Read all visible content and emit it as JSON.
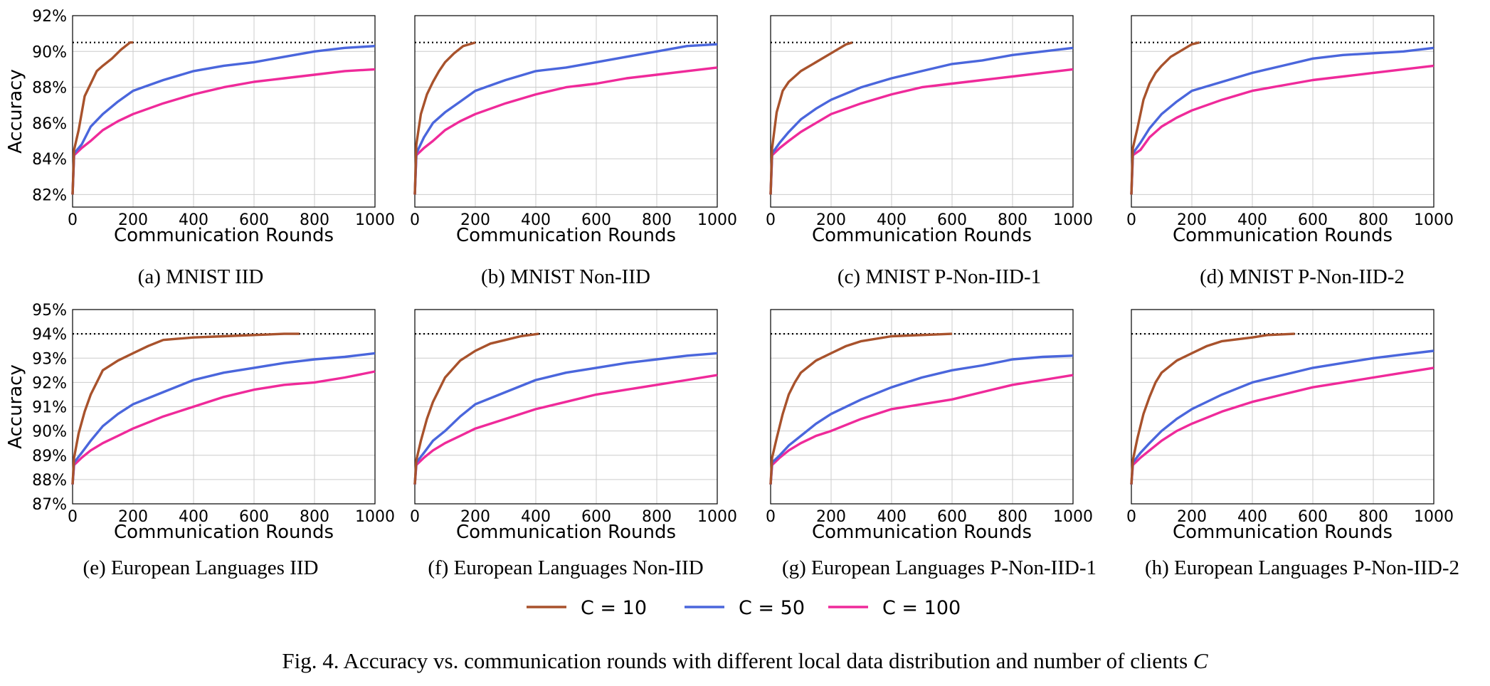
{
  "colors": {
    "C10": "#a8522c",
    "C50": "#4a66dc",
    "C100": "#ef2a9a",
    "target": "#000000"
  },
  "legend": [
    {
      "label": "C = 10",
      "color": "#a8522c"
    },
    {
      "label": "C = 50",
      "color": "#4a66dc"
    },
    {
      "label": "C = 100",
      "color": "#ef2a9a"
    }
  ],
  "figure_caption": {
    "prefix": "Fig. 4.  Accuracy vs. communication rounds with different local data distribution and number of clients ",
    "var": "C"
  },
  "chart_data": [
    {
      "type": "line",
      "caption": "(a) MNIST IID",
      "xlabel": "Communication Rounds",
      "ylabel": "Accuracy",
      "xlim": [
        0,
        1000
      ],
      "ylim": [
        81.3,
        92
      ],
      "yticks": [
        "82%",
        "84%",
        "86%",
        "88%",
        "90%",
        "92%"
      ],
      "xticks": [
        "0",
        "200",
        "400",
        "600",
        "800",
        "1000"
      ],
      "target": 90.5,
      "series": [
        {
          "name": "C = 10",
          "x": [
            0,
            5,
            20,
            40,
            60,
            80,
            100,
            130,
            160,
            190,
            200
          ],
          "y": [
            82,
            84.5,
            85.6,
            87.5,
            88.2,
            88.9,
            89.2,
            89.6,
            90.1,
            90.5,
            90.5
          ]
        },
        {
          "name": "C = 50",
          "x": [
            0,
            5,
            30,
            60,
            100,
            150,
            200,
            300,
            400,
            500,
            600,
            700,
            800,
            900,
            1000
          ],
          "y": [
            82,
            84.3,
            84.8,
            85.8,
            86.5,
            87.2,
            87.8,
            88.4,
            88.9,
            89.2,
            89.4,
            89.7,
            90,
            90.2,
            90.3
          ]
        },
        {
          "name": "C = 100",
          "x": [
            0,
            5,
            30,
            60,
            100,
            150,
            200,
            300,
            400,
            500,
            600,
            700,
            800,
            900,
            1000
          ],
          "y": [
            82,
            84.2,
            84.6,
            85.0,
            85.6,
            86.1,
            86.5,
            87.1,
            87.6,
            88.0,
            88.3,
            88.5,
            88.7,
            88.9,
            89.0
          ]
        }
      ]
    },
    {
      "type": "line",
      "caption": "(b) MNIST Non-IID",
      "xlabel": "Communication Rounds",
      "ylabel": "",
      "xlim": [
        0,
        1000
      ],
      "ylim": [
        81.3,
        92
      ],
      "yticks": [],
      "xticks": [
        "0",
        "200",
        "400",
        "600",
        "800",
        "1000"
      ],
      "target": 90.5,
      "series": [
        {
          "name": "C = 10",
          "x": [
            0,
            5,
            20,
            40,
            60,
            80,
            100,
            130,
            160,
            200
          ],
          "y": [
            82,
            84.8,
            86.5,
            87.6,
            88.3,
            88.9,
            89.4,
            89.9,
            90.3,
            90.5
          ]
        },
        {
          "name": "C = 50",
          "x": [
            0,
            5,
            30,
            60,
            100,
            150,
            200,
            300,
            400,
            500,
            600,
            700,
            800,
            900,
            1000
          ],
          "y": [
            82,
            84.3,
            85.2,
            86.0,
            86.6,
            87.2,
            87.8,
            88.4,
            88.9,
            89.1,
            89.4,
            89.7,
            90.0,
            90.3,
            90.4
          ]
        },
        {
          "name": "C = 100",
          "x": [
            0,
            5,
            30,
            60,
            100,
            150,
            200,
            300,
            400,
            500,
            600,
            700,
            800,
            900,
            1000
          ],
          "y": [
            82,
            84.2,
            84.6,
            85.0,
            85.6,
            86.1,
            86.5,
            87.1,
            87.6,
            88.0,
            88.2,
            88.5,
            88.7,
            88.9,
            89.1
          ]
        }
      ]
    },
    {
      "type": "line",
      "caption": "(c) MNIST P-Non-IID-1",
      "xlabel": "Communication Rounds",
      "ylabel": "",
      "xlim": [
        0,
        1000
      ],
      "ylim": [
        81.3,
        92
      ],
      "yticks": [],
      "xticks": [
        "0",
        "200",
        "400",
        "600",
        "800",
        "1000"
      ],
      "target": 90.5,
      "series": [
        {
          "name": "C = 10",
          "x": [
            0,
            5,
            20,
            40,
            60,
            80,
            100,
            150,
            200,
            250,
            270
          ],
          "y": [
            82,
            84.6,
            86.6,
            87.8,
            88.3,
            88.6,
            88.9,
            89.4,
            89.9,
            90.4,
            90.5
          ]
        },
        {
          "name": "C = 50",
          "x": [
            0,
            5,
            30,
            60,
            100,
            150,
            200,
            300,
            400,
            500,
            600,
            700,
            800,
            900,
            1000
          ],
          "y": [
            82,
            84.3,
            84.9,
            85.5,
            86.2,
            86.8,
            87.3,
            88.0,
            88.5,
            88.9,
            89.3,
            89.5,
            89.8,
            90.0,
            90.2
          ]
        },
        {
          "name": "C = 100",
          "x": [
            0,
            5,
            30,
            60,
            100,
            150,
            200,
            300,
            400,
            500,
            600,
            700,
            800,
            900,
            1000
          ],
          "y": [
            82,
            84.2,
            84.6,
            85.0,
            85.5,
            86.0,
            86.5,
            87.1,
            87.6,
            88.0,
            88.2,
            88.4,
            88.6,
            88.8,
            89.0
          ]
        }
      ]
    },
    {
      "type": "line",
      "caption": "(d) MNIST P-Non-IID-2",
      "xlabel": "Communication Rounds",
      "ylabel": "",
      "xlim": [
        0,
        1000
      ],
      "ylim": [
        81.3,
        92
      ],
      "yticks": [],
      "xticks": [
        "0",
        "200",
        "400",
        "600",
        "800",
        "1000"
      ],
      "target": 90.5,
      "series": [
        {
          "name": "C = 10",
          "x": [
            0,
            5,
            20,
            40,
            60,
            80,
            100,
            130,
            160,
            200,
            225
          ],
          "y": [
            82,
            84.6,
            85.7,
            87.3,
            88.2,
            88.8,
            89.2,
            89.7,
            90.0,
            90.4,
            90.5
          ]
        },
        {
          "name": "C = 50",
          "x": [
            0,
            5,
            30,
            60,
            100,
            150,
            200,
            300,
            400,
            500,
            600,
            700,
            800,
            900,
            1000
          ],
          "y": [
            82,
            84.3,
            84.9,
            85.7,
            86.5,
            87.2,
            87.8,
            88.3,
            88.8,
            89.2,
            89.6,
            89.8,
            89.9,
            90.0,
            90.2
          ]
        },
        {
          "name": "C = 100",
          "x": [
            0,
            5,
            30,
            60,
            100,
            150,
            200,
            300,
            400,
            500,
            600,
            700,
            800,
            900,
            1000
          ],
          "y": [
            82,
            84.2,
            84.5,
            85.2,
            85.8,
            86.3,
            86.7,
            87.3,
            87.8,
            88.1,
            88.4,
            88.6,
            88.8,
            89.0,
            89.2
          ]
        }
      ]
    },
    {
      "type": "line",
      "caption": "(e) European Languages IID",
      "xlabel": "Communication Rounds",
      "ylabel": "Accuracy",
      "xlim": [
        0,
        1000
      ],
      "ylim": [
        87,
        95
      ],
      "yticks": [
        "87%",
        "88%",
        "89%",
        "90%",
        "91%",
        "92%",
        "93%",
        "94%",
        "95%"
      ],
      "xticks": [
        "0",
        "200",
        "400",
        "600",
        "800",
        "1000"
      ],
      "target": 94.0,
      "series": [
        {
          "name": "C = 10",
          "x": [
            0,
            5,
            20,
            40,
            60,
            80,
            100,
            150,
            200,
            250,
            300,
            400,
            500,
            600,
            700,
            750
          ],
          "y": [
            87.8,
            88.9,
            89.9,
            90.8,
            91.5,
            92.0,
            92.5,
            92.9,
            93.2,
            93.5,
            93.75,
            93.85,
            93.9,
            93.95,
            94.0,
            94.0
          ]
        },
        {
          "name": "C = 50",
          "x": [
            0,
            5,
            30,
            60,
            100,
            150,
            200,
            300,
            400,
            500,
            600,
            700,
            800,
            900,
            1000
          ],
          "y": [
            87.8,
            88.7,
            89.1,
            89.6,
            90.2,
            90.7,
            91.1,
            91.6,
            92.1,
            92.4,
            92.6,
            92.8,
            92.95,
            93.05,
            93.2
          ]
        },
        {
          "name": "C = 100",
          "x": [
            0,
            5,
            30,
            60,
            100,
            150,
            200,
            300,
            400,
            500,
            600,
            700,
            800,
            900,
            1000
          ],
          "y": [
            87.8,
            88.6,
            88.9,
            89.2,
            89.5,
            89.8,
            90.1,
            90.6,
            91.0,
            91.4,
            91.7,
            91.9,
            92.0,
            92.2,
            92.45
          ]
        }
      ]
    },
    {
      "type": "line",
      "caption": "(f) European Languages Non-IID",
      "xlabel": "Communication Rounds",
      "ylabel": "",
      "xlim": [
        0,
        1000
      ],
      "ylim": [
        87,
        95
      ],
      "yticks": [],
      "xticks": [
        "0",
        "200",
        "400",
        "600",
        "800",
        "1000"
      ],
      "target": 94.0,
      "series": [
        {
          "name": "C = 10",
          "x": [
            0,
            5,
            20,
            40,
            60,
            80,
            100,
            150,
            200,
            250,
            300,
            350,
            410
          ],
          "y": [
            87.8,
            88.8,
            89.6,
            90.5,
            91.2,
            91.7,
            92.2,
            92.9,
            93.3,
            93.6,
            93.75,
            93.9,
            94.0
          ]
        },
        {
          "name": "C = 50",
          "x": [
            0,
            5,
            30,
            60,
            100,
            150,
            200,
            300,
            400,
            500,
            600,
            700,
            800,
            900,
            1000
          ],
          "y": [
            87.8,
            88.7,
            89.1,
            89.6,
            90.0,
            90.6,
            91.1,
            91.6,
            92.1,
            92.4,
            92.6,
            92.8,
            92.95,
            93.1,
            93.2
          ]
        },
        {
          "name": "C = 100",
          "x": [
            0,
            5,
            30,
            60,
            100,
            150,
            200,
            300,
            400,
            500,
            600,
            700,
            800,
            900,
            1000
          ],
          "y": [
            87.8,
            88.6,
            88.9,
            89.2,
            89.5,
            89.8,
            90.1,
            90.5,
            90.9,
            91.2,
            91.5,
            91.7,
            91.9,
            92.1,
            92.3
          ]
        }
      ]
    },
    {
      "type": "line",
      "caption": "(g) European Languages P-Non-IID-1",
      "xlabel": "Communication Rounds",
      "ylabel": "",
      "xlim": [
        0,
        1000
      ],
      "ylim": [
        87,
        95
      ],
      "yticks": [],
      "xticks": [
        "0",
        "200",
        "400",
        "600",
        "800",
        "1000"
      ],
      "target": 94.0,
      "series": [
        {
          "name": "C = 10",
          "x": [
            0,
            5,
            20,
            40,
            60,
            80,
            100,
            150,
            200,
            250,
            300,
            400,
            500,
            600
          ],
          "y": [
            87.8,
            88.9,
            89.7,
            90.7,
            91.5,
            92.0,
            92.4,
            92.9,
            93.2,
            93.5,
            93.7,
            93.9,
            93.95,
            94.0
          ]
        },
        {
          "name": "C = 50",
          "x": [
            0,
            5,
            30,
            60,
            100,
            150,
            200,
            300,
            400,
            500,
            600,
            700,
            800,
            900,
            1000
          ],
          "y": [
            87.8,
            88.7,
            89.0,
            89.4,
            89.8,
            90.3,
            90.7,
            91.3,
            91.8,
            92.2,
            92.5,
            92.7,
            92.95,
            93.05,
            93.1
          ]
        },
        {
          "name": "C = 100",
          "x": [
            0,
            5,
            30,
            60,
            100,
            150,
            200,
            300,
            400,
            500,
            600,
            700,
            800,
            900,
            1000
          ],
          "y": [
            87.8,
            88.6,
            88.9,
            89.2,
            89.5,
            89.8,
            90.0,
            90.5,
            90.9,
            91.1,
            91.3,
            91.6,
            91.9,
            92.1,
            92.3
          ]
        }
      ]
    },
    {
      "type": "line",
      "caption": "(h) European Languages P-Non-IID-2",
      "xlabel": "Communication Rounds",
      "ylabel": "",
      "xlim": [
        0,
        1000
      ],
      "ylim": [
        87,
        95
      ],
      "yticks": [],
      "xticks": [
        "0",
        "200",
        "400",
        "600",
        "800",
        "1000"
      ],
      "target": 94.0,
      "series": [
        {
          "name": "C = 10",
          "x": [
            0,
            5,
            20,
            40,
            60,
            80,
            100,
            150,
            200,
            250,
            300,
            400,
            450,
            540
          ],
          "y": [
            87.8,
            88.8,
            89.7,
            90.7,
            91.4,
            92.0,
            92.4,
            92.9,
            93.2,
            93.5,
            93.7,
            93.85,
            93.95,
            94.0
          ]
        },
        {
          "name": "C = 50",
          "x": [
            0,
            5,
            30,
            60,
            100,
            150,
            200,
            300,
            400,
            500,
            600,
            700,
            800,
            900,
            1000
          ],
          "y": [
            87.8,
            88.7,
            89.1,
            89.5,
            90.0,
            90.5,
            90.9,
            91.5,
            92.0,
            92.3,
            92.6,
            92.8,
            93.0,
            93.15,
            93.3
          ]
        },
        {
          "name": "C = 100",
          "x": [
            0,
            5,
            30,
            60,
            100,
            150,
            200,
            300,
            400,
            500,
            600,
            700,
            800,
            900,
            1000
          ],
          "y": [
            87.8,
            88.6,
            88.9,
            89.2,
            89.6,
            90.0,
            90.3,
            90.8,
            91.2,
            91.5,
            91.8,
            92.0,
            92.2,
            92.4,
            92.6
          ]
        }
      ]
    }
  ]
}
